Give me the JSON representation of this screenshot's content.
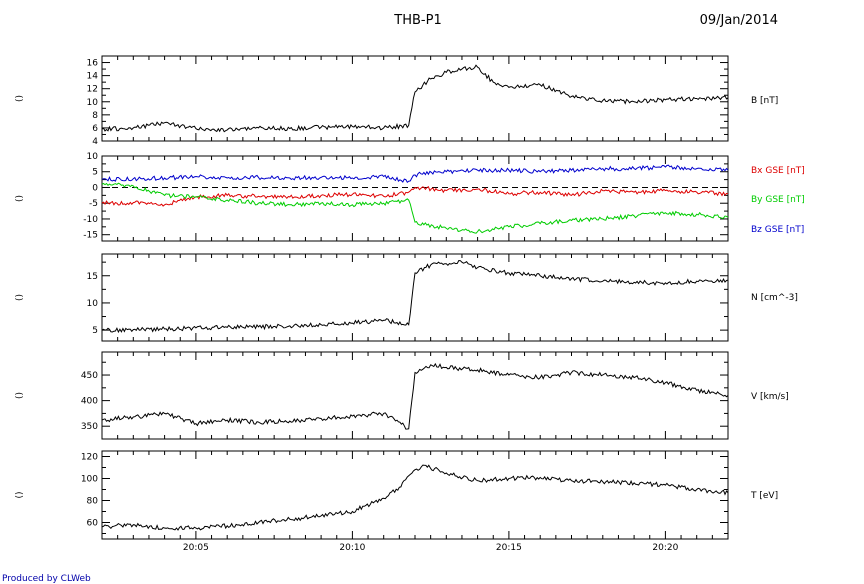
{
  "header": {
    "title": "THB-P1",
    "date": "09/Jan/2014"
  },
  "footer": {
    "credit": "Produced by CLWeb"
  },
  "colors": {
    "black": "#000000",
    "bx": "#dd0000",
    "by": "#00cc00",
    "bz": "#0000cc",
    "credit": "#0000aa"
  },
  "chart_data": {
    "type": "line",
    "x_axis": {
      "unit": "UT",
      "range": [
        "20:02",
        "20:22"
      ],
      "tick_labels": [
        "20:05",
        "20:10",
        "20:15",
        "20:20"
      ]
    },
    "panels": [
      {
        "id": "B",
        "ylabel_left": "()",
        "ylim": [
          4,
          17
        ],
        "yticks": [
          4,
          6,
          8,
          10,
          12,
          14,
          16
        ],
        "series": [
          {
            "label": "B [nT]",
            "color": "#000000",
            "x": [
              "20:02",
              "20:03",
              "20:04",
              "20:05",
              "20:06",
              "20:07",
              "20:08",
              "20:09",
              "20:10",
              "20:11",
              "20:11.8",
              "20:12",
              "20:12.5",
              "20:13",
              "20:13.5",
              "20:14",
              "20:14.5",
              "20:15",
              "20:16",
              "20:17",
              "20:18",
              "20:19",
              "20:20",
              "20:21",
              "20:22"
            ],
            "y": [
              5.8,
              6.0,
              6.8,
              5.9,
              5.7,
              6.0,
              5.9,
              6.1,
              6.2,
              6.0,
              6.4,
              11.5,
              13.5,
              14.5,
              15.0,
              15.3,
              13.0,
              12.2,
              12.6,
              10.8,
              10.2,
              10.0,
              10.3,
              10.5,
              10.6
            ]
          }
        ]
      },
      {
        "id": "Bgse",
        "ylabel_left": "()",
        "ylim": [
          -17,
          10
        ],
        "yticks": [
          -15,
          -10,
          -5,
          0,
          5,
          10
        ],
        "zero_line": true,
        "series": [
          {
            "label": "Bx GSE [nT]",
            "color": "#dd0000",
            "x": [
              "20:02",
              "20:03",
              "20:04",
              "20:05",
              "20:06",
              "20:07",
              "20:08",
              "20:09",
              "20:10",
              "20:11",
              "20:11.8",
              "20:12",
              "20:13",
              "20:14",
              "20:15",
              "20:16",
              "20:17",
              "20:18",
              "20:19",
              "20:20",
              "20:21",
              "20:22"
            ],
            "y": [
              -5.0,
              -4.8,
              -5.5,
              -3.0,
              -2.5,
              -2.8,
              -3.0,
              -2.5,
              -2.2,
              -2.8,
              -1.5,
              0,
              -1.0,
              -0.5,
              -2.0,
              -1.5,
              -2.5,
              -1.0,
              -1.5,
              -1.0,
              -1.5,
              -2.0
            ]
          },
          {
            "label": "By GSE [nT]",
            "color": "#00cc00",
            "x": [
              "20:02",
              "20:03",
              "20:04",
              "20:05",
              "20:06",
              "20:07",
              "20:08",
              "20:09",
              "20:10",
              "20:11",
              "20:11.8",
              "20:12",
              "20:13",
              "20:14",
              "20:15",
              "20:16",
              "20:17",
              "20:18",
              "20:19",
              "20:20",
              "20:21",
              "20:22"
            ],
            "y": [
              1.0,
              0.5,
              -2.5,
              -3.0,
              -4.0,
              -5.0,
              -5.5,
              -5.0,
              -5.5,
              -5.0,
              -4.0,
              -11.0,
              -13.0,
              -14.0,
              -12.5,
              -11.5,
              -10.5,
              -10.0,
              -9.0,
              -8.0,
              -8.5,
              -9.5
            ]
          },
          {
            "label": "Bz GSE [nT]",
            "color": "#0000cc",
            "x": [
              "20:02",
              "20:03",
              "20:04",
              "20:05",
              "20:06",
              "20:07",
              "20:08",
              "20:09",
              "20:10",
              "20:11",
              "20:11.8",
              "20:12",
              "20:13",
              "20:14",
              "20:15",
              "20:16",
              "20:17",
              "20:18",
              "20:19",
              "20:20",
              "20:21",
              "20:22"
            ],
            "y": [
              2.5,
              2.8,
              3.0,
              3.5,
              3.0,
              3.2,
              3.0,
              3.2,
              3.0,
              3.5,
              2.0,
              4.0,
              5.0,
              5.5,
              5.5,
              5.0,
              5.5,
              6.0,
              6.0,
              6.5,
              6.0,
              5.5
            ]
          }
        ]
      },
      {
        "id": "N",
        "ylabel_left": "()",
        "ylim": [
          3,
          19
        ],
        "yticks": [
          5,
          10,
          15
        ],
        "series": [
          {
            "label": "N [cm^-3]",
            "color": "#000000",
            "x": [
              "20:02",
              "20:03",
              "20:04",
              "20:05",
              "20:06",
              "20:07",
              "20:08",
              "20:09",
              "20:10",
              "20:11",
              "20:11.8",
              "20:12",
              "20:12.5",
              "20:13",
              "20:13.5",
              "20:14",
              "20:15",
              "20:16",
              "20:17",
              "20:18",
              "20:19",
              "20:20",
              "20:21",
              "20:22"
            ],
            "y": [
              5.0,
              5.1,
              5.2,
              5.4,
              5.5,
              5.6,
              5.8,
              6.0,
              6.3,
              6.8,
              6.0,
              15.5,
              17.0,
              17.2,
              17.5,
              16.5,
              15.5,
              15.0,
              14.5,
              14.0,
              13.8,
              13.7,
              14.0,
              14.2
            ]
          }
        ]
      },
      {
        "id": "V",
        "ylabel_left": "()",
        "ylim": [
          325,
          495
        ],
        "yticks": [
          350,
          400,
          450
        ],
        "series": [
          {
            "label": "V [km/s]",
            "color": "#000000",
            "x": [
              "20:02",
              "20:03",
              "20:04",
              "20:05",
              "20:06",
              "20:07",
              "20:08",
              "20:09",
              "20:10",
              "20:11",
              "20:11.8",
              "20:12",
              "20:12.5",
              "20:13",
              "20:14",
              "20:15",
              "20:16",
              "20:17",
              "20:18",
              "20:19",
              "20:20",
              "20:21",
              "20:22"
            ],
            "y": [
              362,
              368,
              375,
              355,
              362,
              358,
              360,
              365,
              370,
              375,
              345,
              455,
              470,
              465,
              460,
              450,
              445,
              455,
              450,
              445,
              435,
              420,
              410
            ]
          }
        ]
      },
      {
        "id": "T",
        "ylabel_left": "()",
        "ylim": [
          45,
          125
        ],
        "yticks": [
          60,
          80,
          100,
          120
        ],
        "series": [
          {
            "label": "T [eV]",
            "color": "#000000",
            "x": [
              "20:02",
              "20:03",
              "20:04",
              "20:05",
              "20:06",
              "20:07",
              "20:08",
              "20:09",
              "20:10",
              "20:11",
              "20:11.5",
              "20:12",
              "20:12.3",
              "20:13",
              "20:14",
              "20:15",
              "20:16",
              "20:17",
              "20:18",
              "20:19",
              "20:20",
              "20:21",
              "20:22"
            ],
            "y": [
              56,
              58,
              55,
              55,
              57,
              60,
              63,
              66,
              70,
              82,
              92,
              108,
              112,
              105,
              98,
              100,
              101,
              98,
              97,
              96,
              94,
              90,
              87
            ]
          }
        ]
      }
    ]
  }
}
